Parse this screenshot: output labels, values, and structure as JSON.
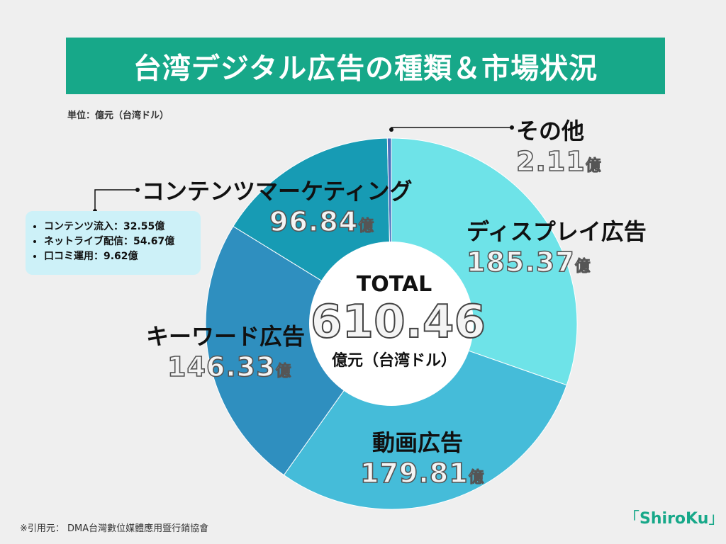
{
  "title": "台湾デジタル広告の種類＆市場状況",
  "unit_label": "単位：億元（台湾ドル）",
  "chart_data": {
    "type": "pie",
    "donut": true,
    "start_angle_deg": 0,
    "direction": "clockwise",
    "slices": [
      {
        "name": "ディスプレイ広告",
        "value": 185.37,
        "color": "#6ee3e8"
      },
      {
        "name": "動画広告",
        "value": 179.81,
        "color": "#45bcd9"
      },
      {
        "name": "キーワード広告",
        "value": 146.33,
        "color": "#2f8fbf"
      },
      {
        "name": "コンテンツマーケティング",
        "value": 96.84,
        "color": "#179bb4"
      },
      {
        "name": "その他",
        "value": 2.11,
        "color": "#4a6dbb"
      }
    ],
    "total": {
      "label": "TOTAL",
      "value": "610.46",
      "unit": "億元（台湾ドル）"
    }
  },
  "labels": {
    "display": {
      "name": "ディスプレイ広告",
      "value": "185.37",
      "unit": "億"
    },
    "video": {
      "name": "動画広告",
      "value": "179.81",
      "unit": "億"
    },
    "keyword": {
      "name": "キーワード広告",
      "value": "146.33",
      "unit": "億"
    },
    "content": {
      "name": "コンテンツマーケティング",
      "value": "96.84",
      "unit": "億"
    },
    "other": {
      "name": "その他",
      "value": "2.11",
      "unit": "億"
    }
  },
  "breakdown": [
    "コンテンツ流入：32.55億",
    "ネットライブ配信：54.67億",
    "口コミ運用：9.62億"
  ],
  "source": "※引用元： DMA台灣數位媒體應用暨行銷協會",
  "logo": {
    "text": "ShiroKu",
    "left_bracket": "「",
    "right_bracket": "」"
  }
}
